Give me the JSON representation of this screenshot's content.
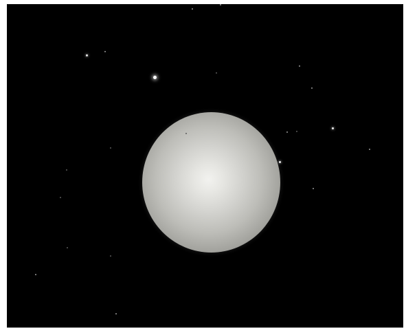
{
  "scene": {
    "background_color": "#000000",
    "planet_color": "#d9d9d5",
    "star_color": "#ffffff"
  }
}
